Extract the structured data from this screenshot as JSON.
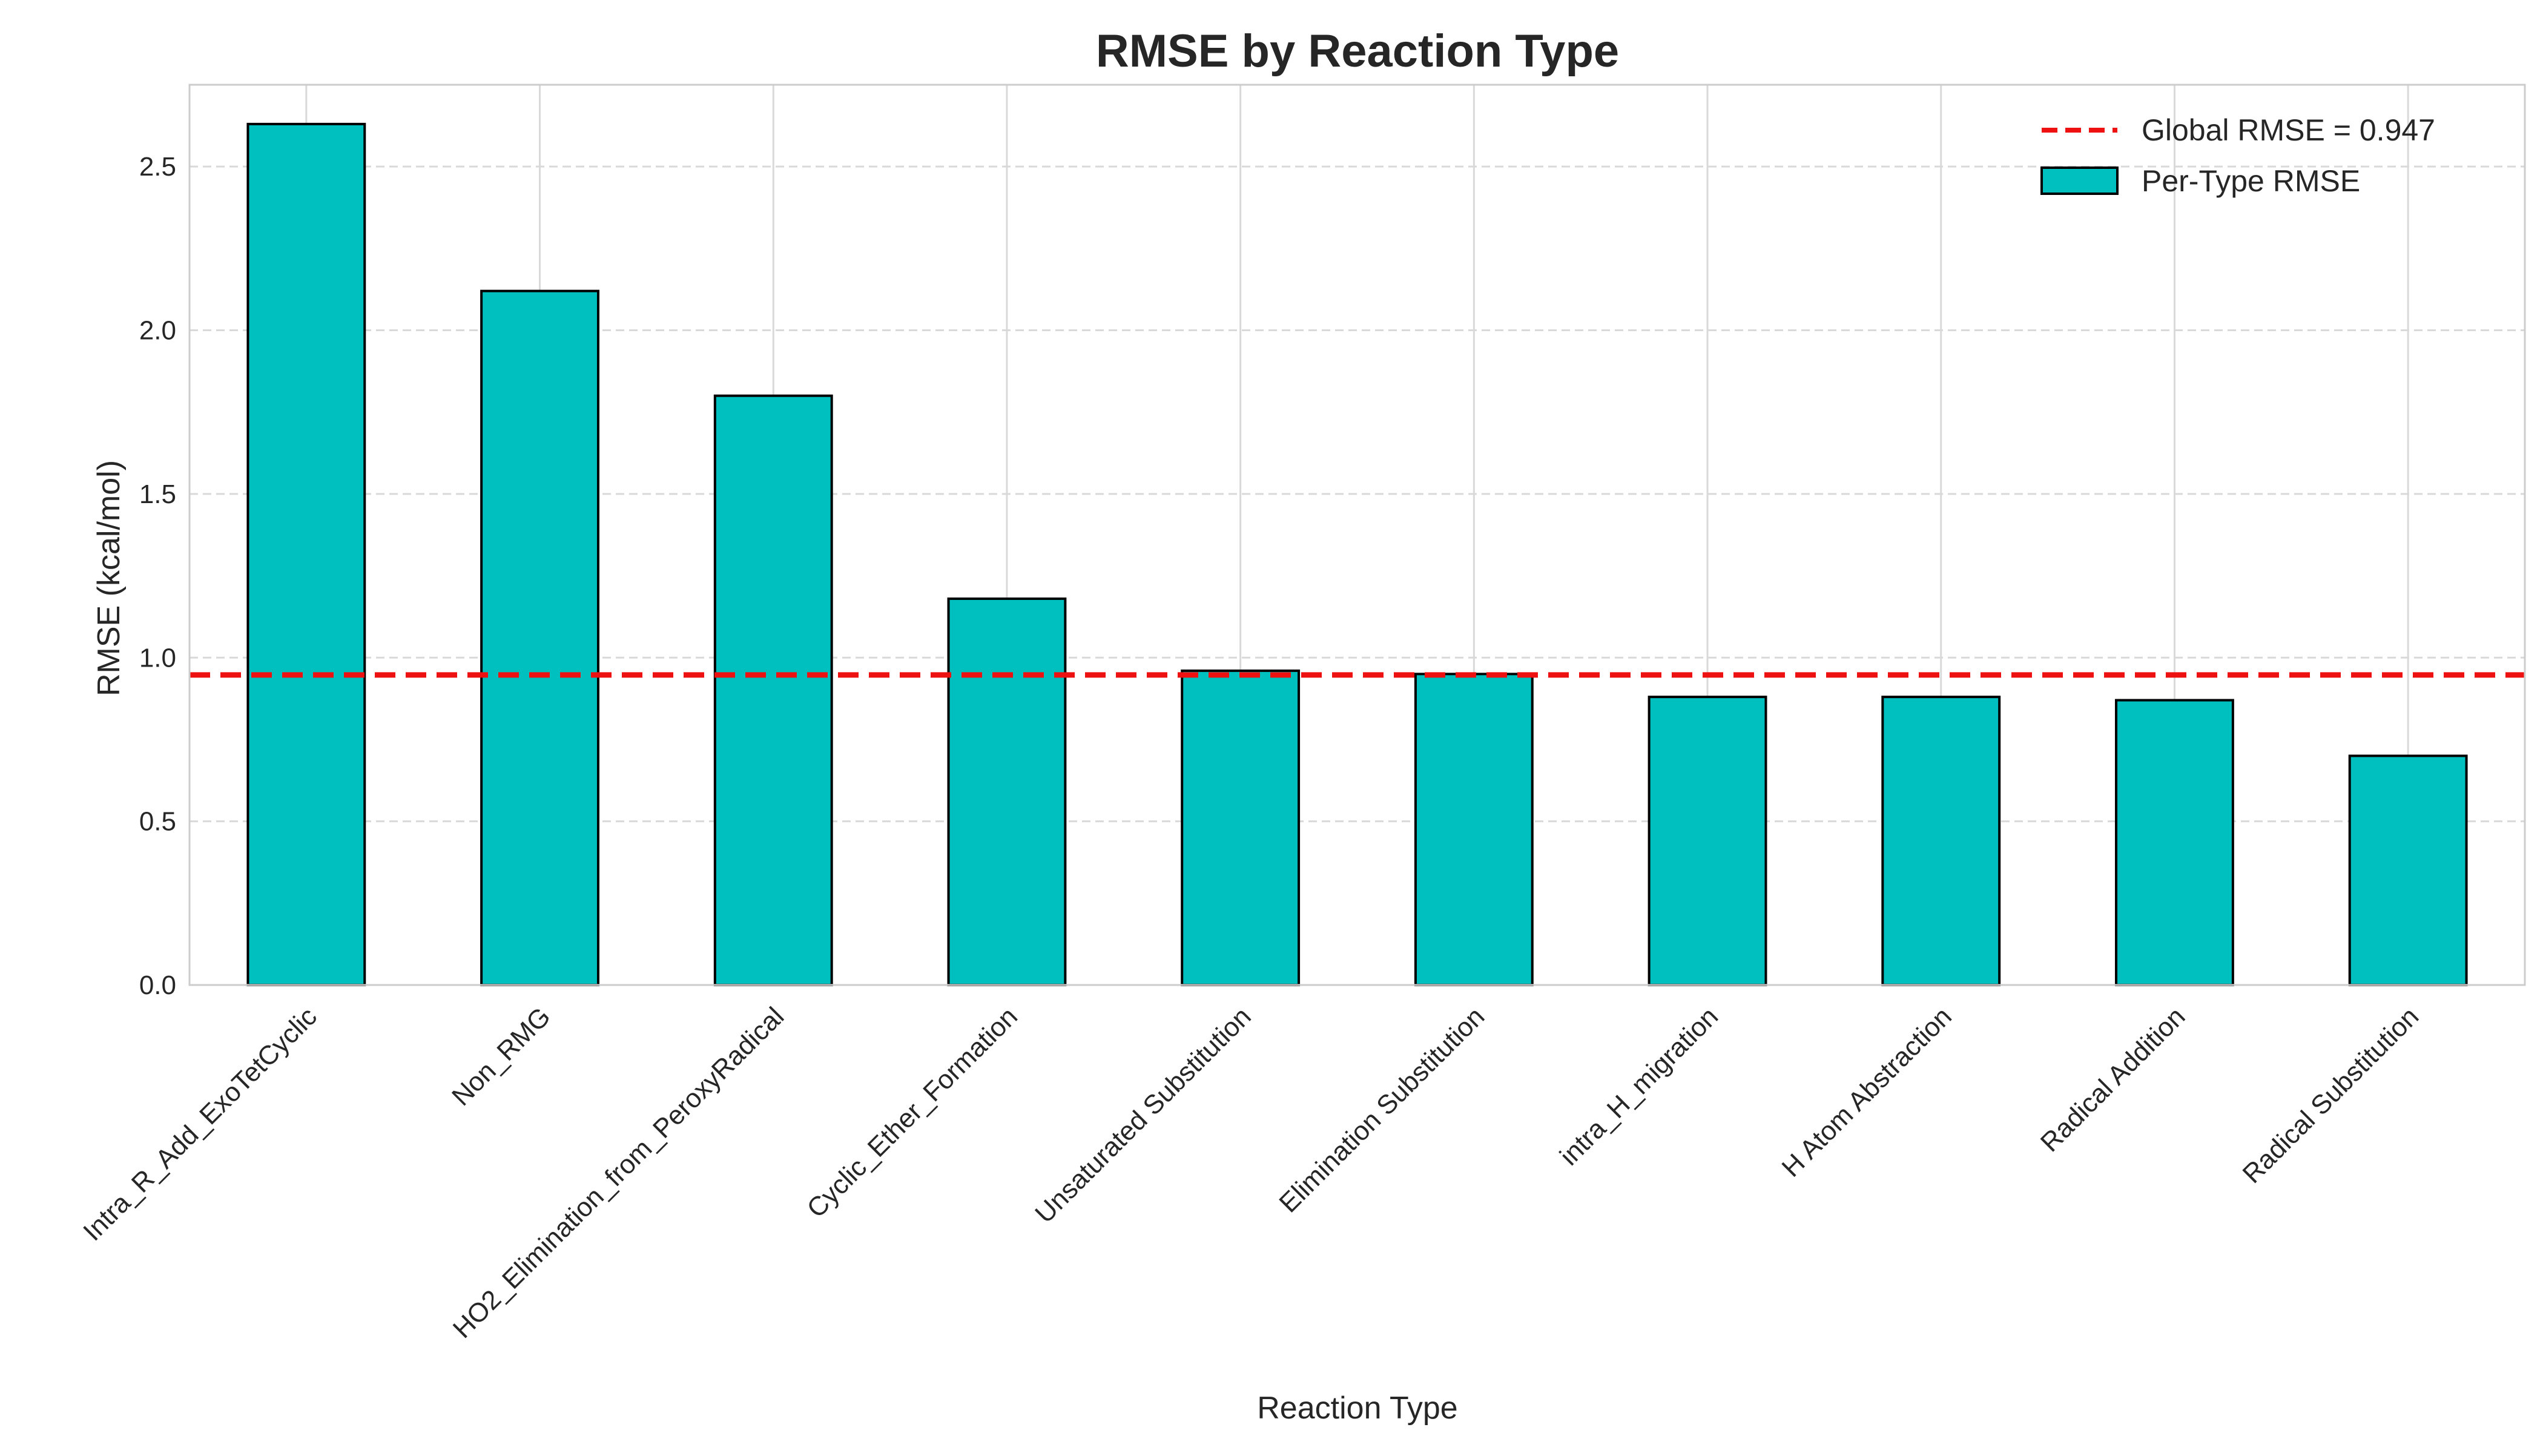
{
  "chart_data": {
    "type": "bar",
    "title": "RMSE by Reaction Type",
    "xlabel": "Reaction Type",
    "ylabel": "RMSE (kcal/mol)",
    "ylim": [
      0,
      2.75
    ],
    "yticks": [
      0.0,
      0.5,
      1.0,
      1.5,
      2.0,
      2.5
    ],
    "ytick_labels": [
      "0.0",
      "0.5",
      "1.0",
      "1.5",
      "2.0",
      "2.5"
    ],
    "grid": true,
    "legend_position": "top-right",
    "categories": [
      "Intra_R_Add_ExoTetCyclic",
      "Non_RMG",
      "HO2_Elimination_from_PeroxyRadical",
      "Cyclic_Ether_Formation",
      "Unsaturated Substitution",
      "Elimination Substitution",
      "intra_H_migration",
      "H Atom Abstraction",
      "Radical Addition",
      "Radical Substitution"
    ],
    "series": [
      {
        "name": "Per-Type RMSE",
        "color": "#00bfbf",
        "values": [
          2.63,
          2.12,
          1.8,
          1.18,
          0.96,
          0.95,
          0.88,
          0.88,
          0.87,
          0.7
        ]
      }
    ],
    "reference_line": {
      "label": "Global RMSE = 0.947",
      "value": 0.947,
      "color": "#ee1111",
      "style": "dashed"
    }
  }
}
